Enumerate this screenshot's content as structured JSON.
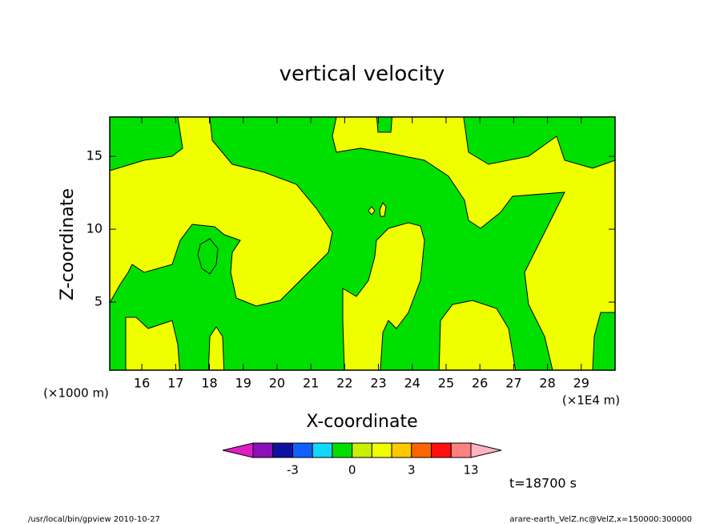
{
  "chart_data": {
    "type": "contour",
    "title": "vertical velocity",
    "xlabel": "X-coordinate",
    "ylabel": "Z-coordinate",
    "xunit": "(×1E4 m)",
    "yunit": "(×1000 m)",
    "xlim": [
      15.05,
      30
    ],
    "xticks": [
      16,
      17,
      18,
      19,
      20,
      21,
      22,
      23,
      24,
      25,
      26,
      27,
      28,
      29
    ],
    "ylim": [
      0.33,
      17.7
    ],
    "yticks": [
      5,
      10,
      15
    ],
    "colorbar": {
      "levels": [
        null,
        null,
        -3,
        null,
        null,
        0,
        null,
        null,
        3,
        null,
        null,
        13
      ],
      "colors": [
        "#e01ec8",
        "#8a10b8",
        "#1010a0",
        "#1060ff",
        "#10d8ff",
        "#00e000",
        "#c8f000",
        "#f0ff00",
        "#ffc800",
        "#ff6400",
        "#ff1010",
        "#ff8080",
        "#ffb4c0"
      ]
    },
    "time_label": "t=18700 s",
    "footer_left": "/usr/local/bin/gpview   2010-10-27",
    "footer_right": "arare-earth_VelZ.nc@VelZ,x=150000:300000"
  }
}
